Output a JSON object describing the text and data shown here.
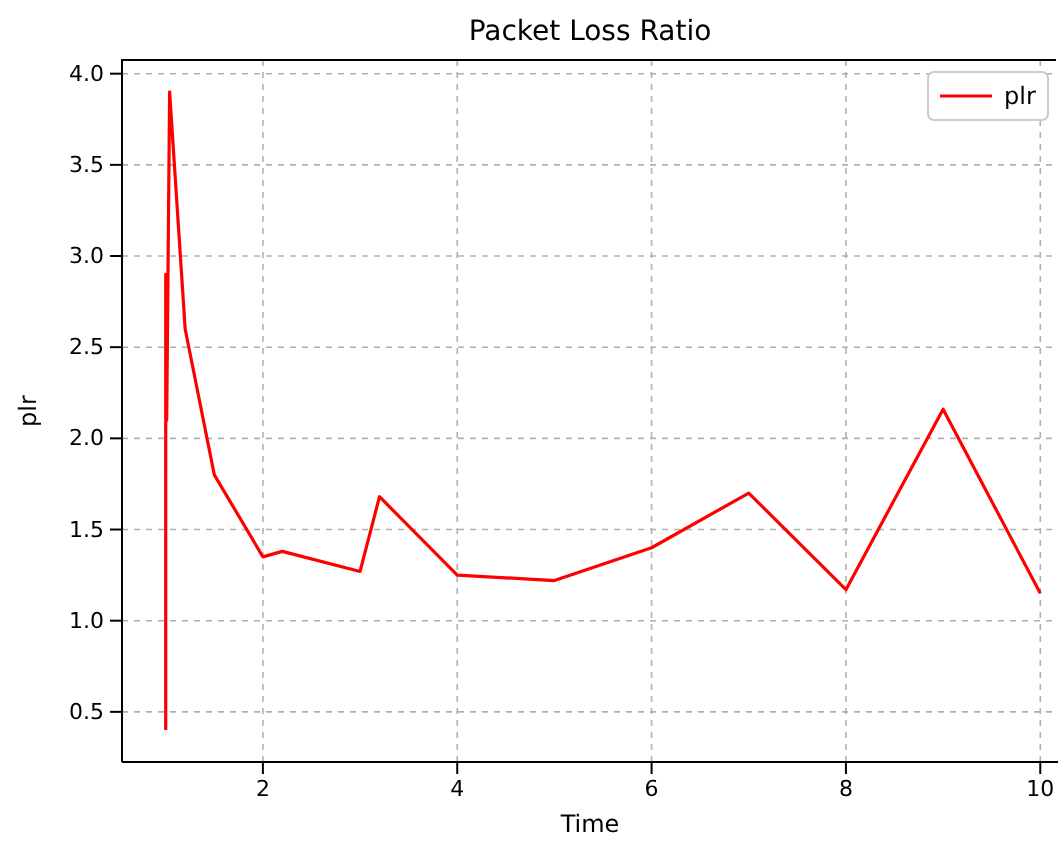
{
  "chart_data": {
    "type": "line",
    "title": "Packet Loss Ratio",
    "xlabel": "Time",
    "ylabel": "plr",
    "xlim": [
      0.55,
      10.45
    ],
    "ylim": [
      0.225,
      4.075
    ],
    "xticks": [
      2,
      4,
      6,
      8,
      10
    ],
    "yticks": [
      {
        "value": 0.5,
        "label": "0.5"
      },
      {
        "value": 1,
        "label": "1.0"
      },
      {
        "value": 1.5,
        "label": "1.5"
      },
      {
        "value": 2,
        "label": "2.0"
      },
      {
        "value": 2.5,
        "label": "2.5"
      },
      {
        "value": 3,
        "label": "3.0"
      },
      {
        "value": 3.5,
        "label": "3.5"
      },
      {
        "value": 4,
        "label": "4.0"
      }
    ],
    "grid": true,
    "legend": "top right",
    "series": [
      {
        "name": "plr",
        "color": "#ff0000",
        "x": [
          1,
          1,
          1.01,
          1.04,
          1.2,
          1.5,
          2,
          2.2,
          3,
          3.2,
          4,
          5,
          6,
          7,
          8,
          9,
          10
        ],
        "values": [
          0.4,
          2.9,
          2.1,
          3.9,
          2.6,
          1.8,
          1.35,
          1.38,
          1.27,
          1.68,
          1.25,
          1.22,
          1.4,
          1.7,
          1.17,
          2.16,
          1.15
        ]
      }
    ]
  }
}
